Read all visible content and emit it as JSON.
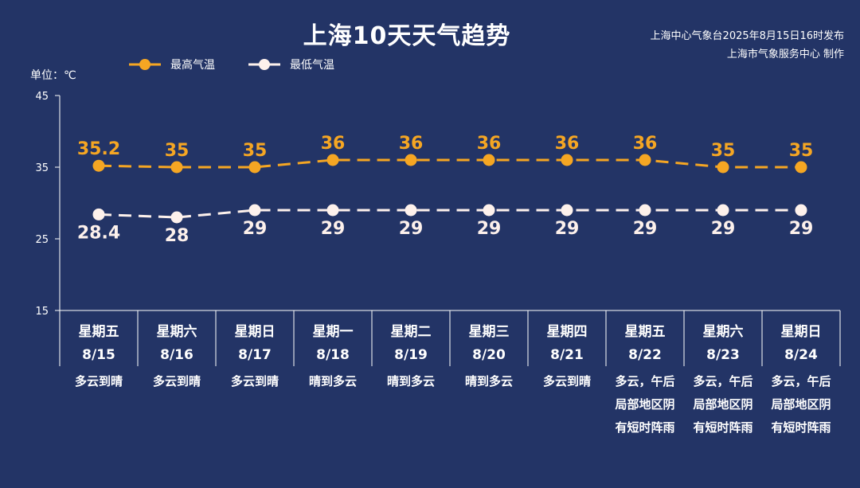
{
  "title": "上海10天天气趋势",
  "source": {
    "line1": "上海中心气象台2025年8月15日16时发布",
    "line2": "上海市气象服务中心 制作"
  },
  "colors": {
    "background": "#233466",
    "high": "#F5A623",
    "low": "#FDF1EC",
    "axis": "#FFFFFF"
  },
  "chart_data": {
    "type": "line",
    "ylabel": "单位：℃",
    "ylim": [
      15,
      45
    ],
    "yticks": [
      15,
      25,
      35,
      45
    ],
    "grid": false,
    "legend": "top-left",
    "categories": [
      "8/15",
      "8/16",
      "8/17",
      "8/18",
      "8/19",
      "8/20",
      "8/21",
      "8/22",
      "8/23",
      "8/24"
    ],
    "weekdays": [
      "星期五",
      "星期六",
      "星期日",
      "星期一",
      "星期二",
      "星期三",
      "星期四",
      "星期五",
      "星期六",
      "星期日"
    ],
    "weather": [
      [
        "多云到晴"
      ],
      [
        "多云到晴"
      ],
      [
        "多云到晴"
      ],
      [
        "晴到多云"
      ],
      [
        "晴到多云"
      ],
      [
        "晴到多云"
      ],
      [
        "多云到晴"
      ],
      [
        "多云，午后",
        "局部地区阴",
        "有短时阵雨"
      ],
      [
        "多云，午后",
        "局部地区阴",
        "有短时阵雨"
      ],
      [
        "多云，午后",
        "局部地区阴",
        "有短时阵雨"
      ]
    ],
    "series": [
      {
        "name": "最高气温",
        "values": [
          35.2,
          35,
          35,
          36,
          36,
          36,
          36,
          36,
          35,
          35
        ]
      },
      {
        "name": "最低气温",
        "values": [
          28.4,
          28,
          29,
          29,
          29,
          29,
          29,
          29,
          29,
          29
        ]
      }
    ]
  }
}
